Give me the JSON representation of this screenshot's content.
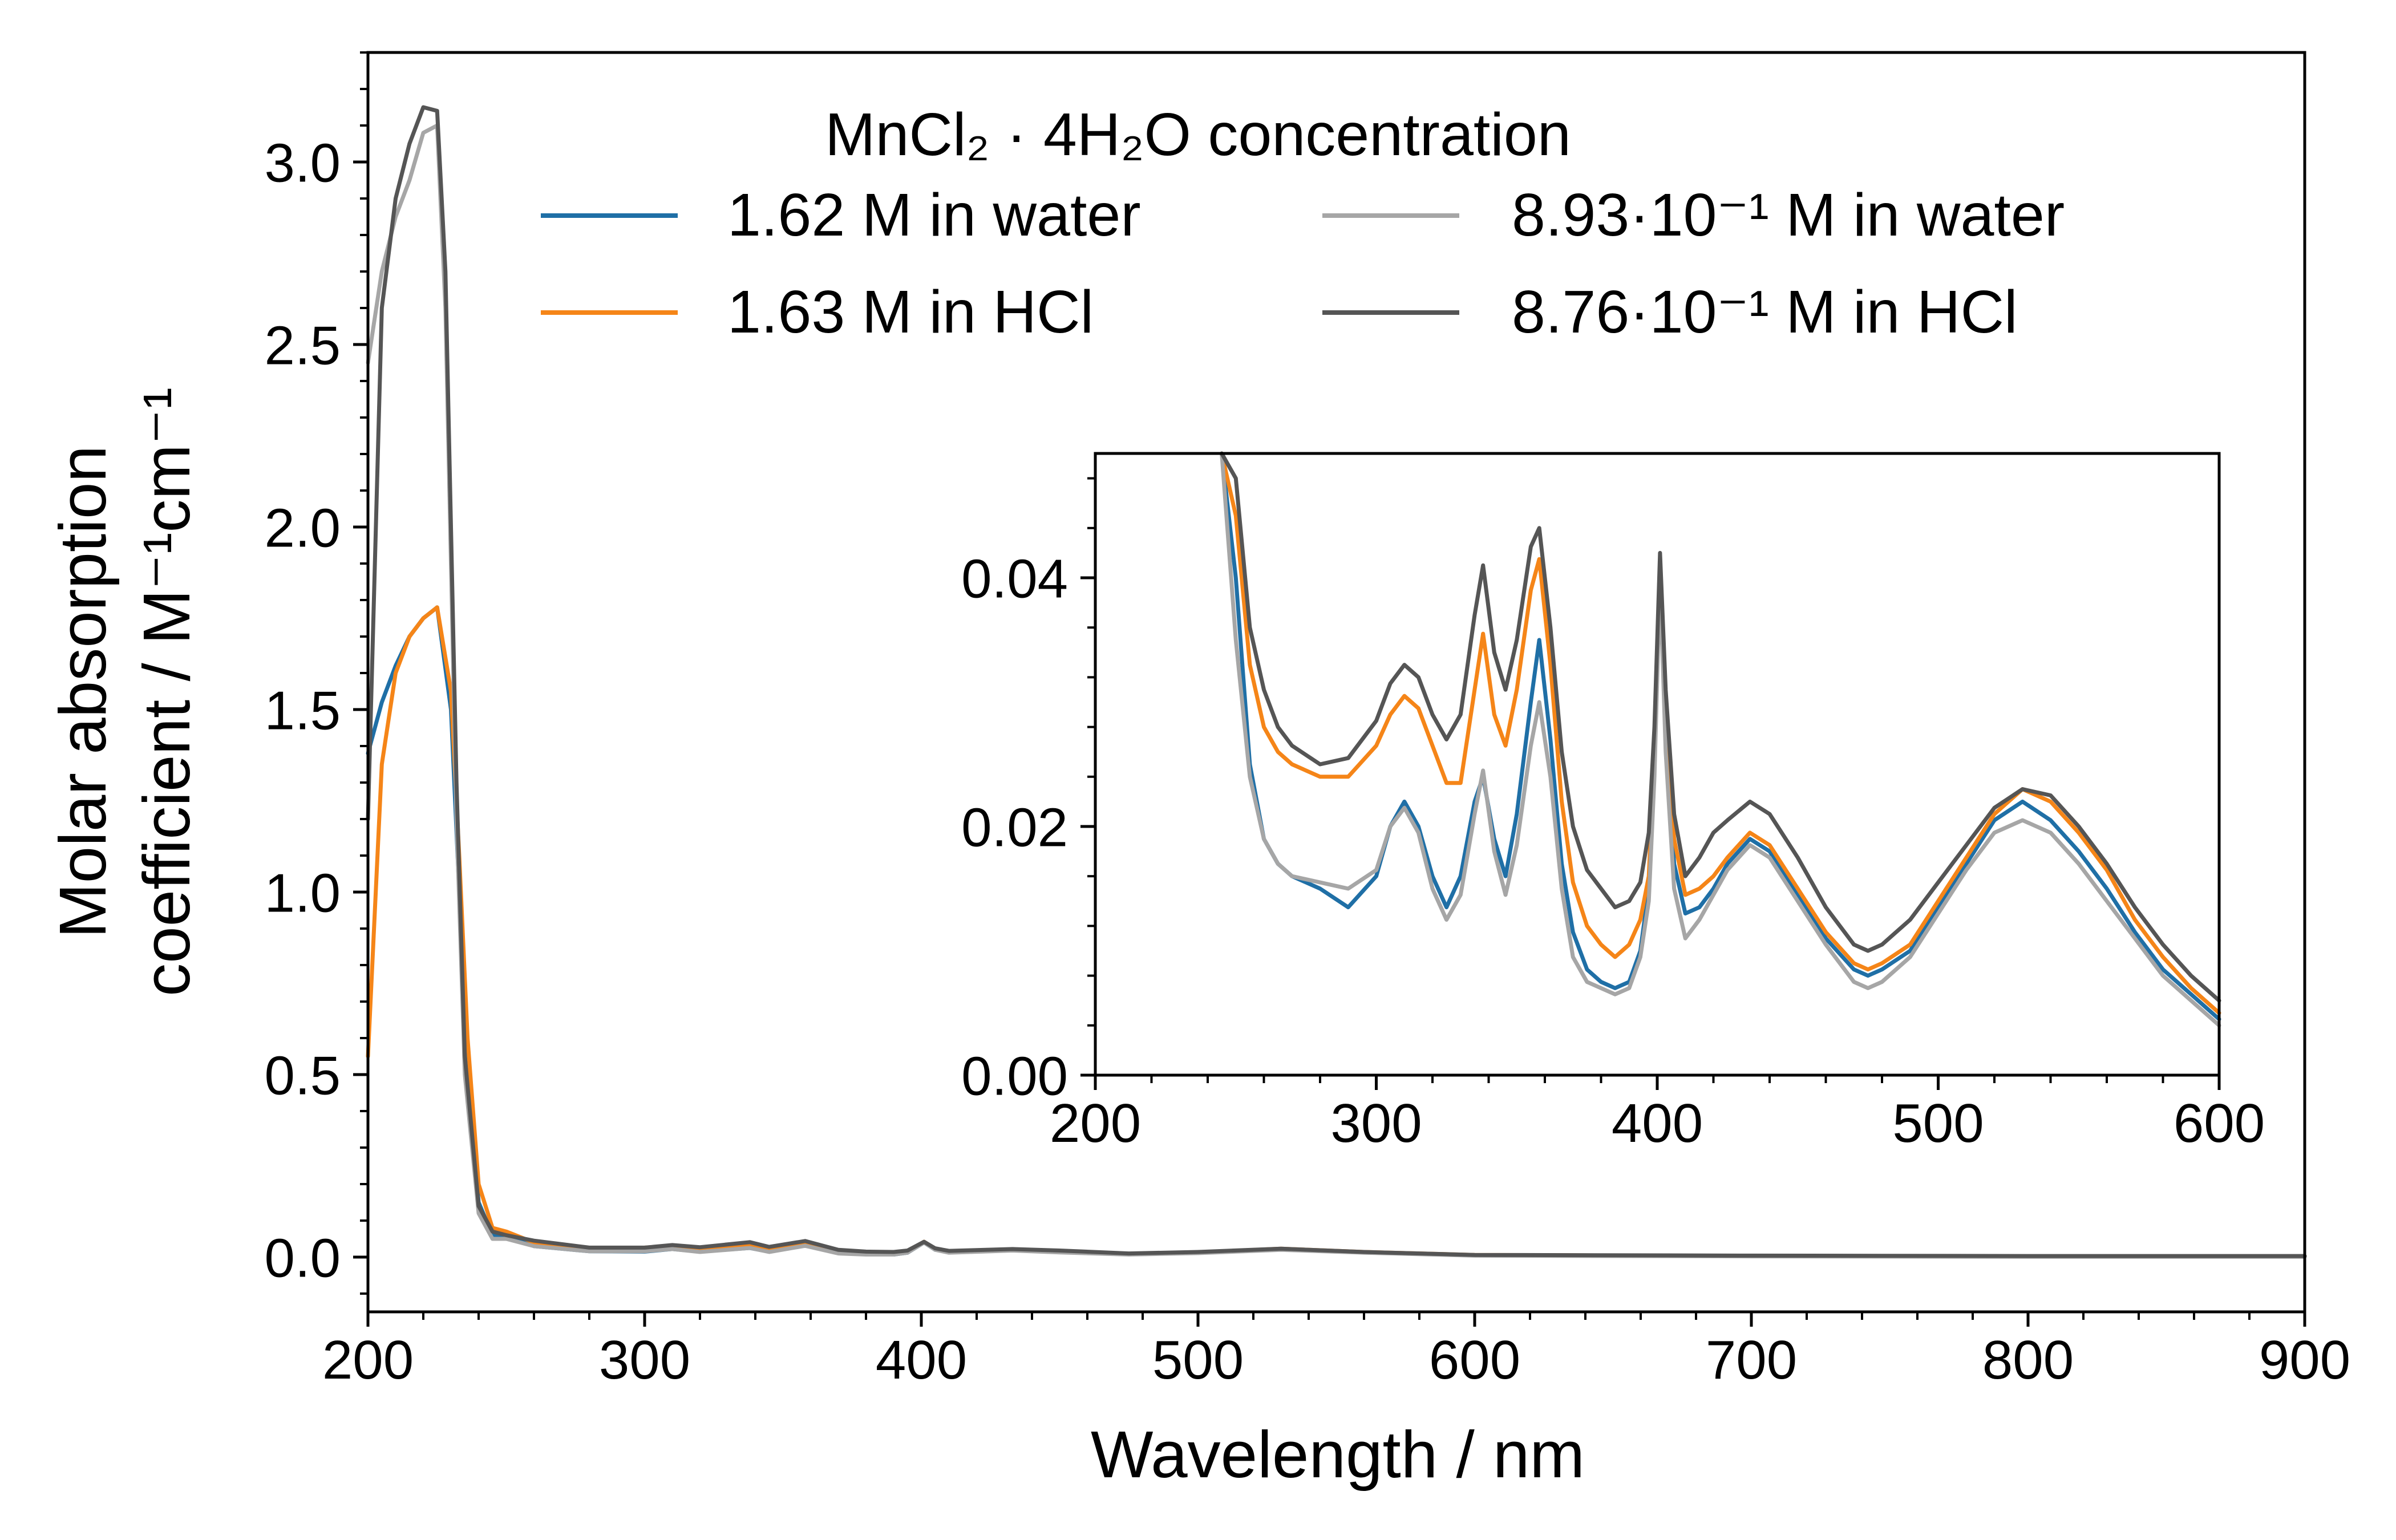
{
  "chart_data": [
    {
      "type": "line",
      "xlabel": "Wavelength / nm",
      "ylabel_line1": "Molar absorption",
      "ylabel_line2": "coefficient / M⁻¹cm⁻¹",
      "xlim": [
        200,
        900
      ],
      "ylim": [
        -0.15,
        3.3
      ],
      "xticks": [
        200,
        300,
        400,
        500,
        600,
        700,
        800,
        900
      ],
      "xtick_labels": [
        "200",
        "300",
        "400",
        "500",
        "600",
        "700",
        "800",
        "900"
      ],
      "yticks": [
        0.0,
        0.5,
        1.0,
        1.5,
        2.0,
        2.5,
        3.0
      ],
      "ytick_labels": [
        "0.0",
        "0.5",
        "1.0",
        "1.5",
        "2.0",
        "2.5",
        "3.0"
      ],
      "grid": false,
      "legend": {
        "placement": "top-center",
        "title": "MnCl₂ · 4H₂O concentration",
        "entries": [
          "1.62 M in water",
          "1.63 M in HCl",
          "8.93·10⁻¹ M in water",
          "8.76·10⁻¹ M in HCl"
        ]
      },
      "series": [
        {
          "name": "1.62 M in water",
          "color": "#1f6fa6",
          "x": [
            200,
            205,
            210,
            215,
            220,
            225,
            230,
            233,
            236,
            240,
            245,
            250,
            260,
            280,
            300,
            310,
            320,
            338,
            345,
            358,
            370,
            380,
            390,
            395,
            401,
            405,
            410,
            433,
            450,
            475,
            500,
            530,
            560,
            600,
            700,
            800,
            900
          ],
          "y": [
            1.38,
            1.52,
            1.62,
            1.7,
            1.75,
            1.78,
            1.5,
            1.0,
            0.5,
            0.15,
            0.06,
            0.06,
            0.03,
            0.016,
            0.015,
            0.022,
            0.015,
            0.025,
            0.015,
            0.035,
            0.012,
            0.008,
            0.007,
            0.012,
            0.04,
            0.02,
            0.015,
            0.019,
            0.014,
            0.008,
            0.012,
            0.022,
            0.013,
            0.005,
            0.003,
            0.002,
            0.002
          ]
        },
        {
          "name": "1.63 M in HCl",
          "color": "#f58518",
          "x": [
            200,
            205,
            210,
            215,
            220,
            225,
            230,
            233,
            236,
            240,
            245,
            250,
            260,
            280,
            300,
            310,
            320,
            338,
            345,
            358,
            370,
            380,
            390,
            395,
            401,
            405,
            410,
            433,
            450,
            475,
            500,
            530,
            560,
            600,
            700,
            800,
            900
          ],
          "y": [
            0.55,
            1.35,
            1.6,
            1.7,
            1.75,
            1.78,
            1.55,
            1.1,
            0.6,
            0.2,
            0.08,
            0.07,
            0.04,
            0.025,
            0.026,
            0.031,
            0.025,
            0.035,
            0.025,
            0.041,
            0.015,
            0.01,
            0.009,
            0.015,
            0.042,
            0.022,
            0.016,
            0.02,
            0.015,
            0.008,
            0.013,
            0.023,
            0.014,
            0.006,
            0.003,
            0.002,
            0.002
          ]
        },
        {
          "name": "8.93·10⁻¹ M in water",
          "color": "#a6a6a6",
          "x": [
            200,
            205,
            210,
            215,
            220,
            225,
            228,
            232,
            235,
            240,
            245,
            250,
            260,
            280,
            300,
            310,
            320,
            338,
            345,
            358,
            370,
            380,
            390,
            395,
            401,
            405,
            410,
            433,
            450,
            475,
            500,
            530,
            560,
            600,
            700,
            800,
            900
          ],
          "y": [
            2.45,
            2.7,
            2.85,
            2.95,
            3.08,
            3.1,
            2.6,
            1.2,
            0.5,
            0.12,
            0.05,
            0.05,
            0.03,
            0.016,
            0.016,
            0.022,
            0.014,
            0.025,
            0.014,
            0.031,
            0.01,
            0.007,
            0.007,
            0.012,
            0.04,
            0.02,
            0.012,
            0.018,
            0.013,
            0.007,
            0.011,
            0.02,
            0.012,
            0.004,
            0.002,
            0.001,
            0.001
          ]
        },
        {
          "name": "8.76·10⁻¹ M in HCl",
          "color": "#555555",
          "x": [
            200,
            205,
            210,
            215,
            220,
            225,
            228,
            232,
            235,
            240,
            245,
            250,
            260,
            280,
            300,
            310,
            320,
            338,
            345,
            358,
            370,
            380,
            390,
            395,
            401,
            405,
            410,
            433,
            450,
            475,
            500,
            530,
            560,
            600,
            700,
            800,
            900
          ],
          "y": [
            1.2,
            2.6,
            2.9,
            3.05,
            3.15,
            3.14,
            2.7,
            1.3,
            0.55,
            0.14,
            0.07,
            0.06,
            0.045,
            0.026,
            0.026,
            0.033,
            0.027,
            0.041,
            0.028,
            0.044,
            0.02,
            0.015,
            0.014,
            0.018,
            0.042,
            0.024,
            0.017,
            0.022,
            0.018,
            0.01,
            0.014,
            0.023,
            0.014,
            0.006,
            0.004,
            0.003,
            0.003
          ]
        }
      ]
    },
    {
      "type": "line",
      "inset": true,
      "xlim": [
        200,
        600
      ],
      "ylim": [
        0.0,
        0.05
      ],
      "xticks": [
        200,
        300,
        400,
        500,
        600
      ],
      "xtick_labels": [
        "200",
        "300",
        "400",
        "500",
        "600"
      ],
      "yticks": [
        0.0,
        0.02,
        0.04
      ],
      "ytick_labels": [
        "0.00",
        "0.02",
        "0.04"
      ],
      "grid": false,
      "series": [
        {
          "name": "1.62 M in water",
          "color": "#1f6fa6",
          "x": [
            245,
            250,
            255,
            260,
            265,
            270,
            280,
            290,
            300,
            305,
            310,
            315,
            320,
            325,
            330,
            335,
            338,
            342,
            346,
            350,
            355,
            358,
            362,
            366,
            370,
            375,
            380,
            385,
            390,
            394,
            397,
            399,
            401,
            403,
            406,
            410,
            415,
            420,
            425,
            433,
            440,
            450,
            460,
            470,
            475,
            480,
            490,
            500,
            510,
            520,
            530,
            540,
            550,
            560,
            570,
            580,
            590,
            600
          ],
          "y": [
            0.06,
            0.04,
            0.025,
            0.019,
            0.017,
            0.016,
            0.015,
            0.0135,
            0.016,
            0.02,
            0.022,
            0.02,
            0.016,
            0.0135,
            0.016,
            0.022,
            0.024,
            0.019,
            0.016,
            0.021,
            0.03,
            0.035,
            0.027,
            0.017,
            0.0115,
            0.0085,
            0.0075,
            0.007,
            0.0075,
            0.01,
            0.015,
            0.025,
            0.041,
            0.028,
            0.017,
            0.013,
            0.0135,
            0.015,
            0.017,
            0.019,
            0.018,
            0.0145,
            0.011,
            0.0085,
            0.008,
            0.0085,
            0.01,
            0.0135,
            0.017,
            0.0205,
            0.022,
            0.0205,
            0.018,
            0.015,
            0.0115,
            0.0085,
            0.0065,
            0.0045
          ]
        },
        {
          "name": "1.63 M in HCl",
          "color": "#f58518",
          "x": [
            245,
            250,
            255,
            260,
            265,
            270,
            280,
            290,
            300,
            305,
            310,
            315,
            320,
            325,
            330,
            335,
            338,
            342,
            346,
            350,
            355,
            358,
            362,
            366,
            370,
            375,
            380,
            385,
            390,
            394,
            397,
            399,
            401,
            403,
            406,
            410,
            415,
            420,
            425,
            433,
            440,
            450,
            460,
            470,
            475,
            480,
            490,
            500,
            510,
            520,
            530,
            540,
            550,
            560,
            570,
            580,
            590,
            600
          ],
          "y": [
            0.06,
            0.045,
            0.033,
            0.028,
            0.026,
            0.025,
            0.024,
            0.024,
            0.0265,
            0.029,
            0.0305,
            0.0295,
            0.0265,
            0.0235,
            0.0235,
            0.031,
            0.0355,
            0.029,
            0.0265,
            0.031,
            0.039,
            0.0415,
            0.033,
            0.022,
            0.0155,
            0.012,
            0.0105,
            0.0095,
            0.0105,
            0.0125,
            0.016,
            0.026,
            0.0415,
            0.029,
            0.019,
            0.0145,
            0.015,
            0.016,
            0.0175,
            0.0195,
            0.0185,
            0.015,
            0.0115,
            0.009,
            0.0085,
            0.009,
            0.0105,
            0.014,
            0.0175,
            0.021,
            0.023,
            0.022,
            0.0195,
            0.0165,
            0.0125,
            0.0095,
            0.007,
            0.005
          ]
        },
        {
          "name": "8.93·10⁻¹ M in water",
          "color": "#a6a6a6",
          "x": [
            245,
            250,
            255,
            260,
            265,
            270,
            280,
            290,
            300,
            305,
            310,
            315,
            320,
            325,
            330,
            335,
            338,
            342,
            346,
            350,
            355,
            358,
            362,
            366,
            370,
            375,
            380,
            385,
            390,
            394,
            397,
            399,
            401,
            403,
            406,
            410,
            415,
            420,
            425,
            433,
            440,
            450,
            460,
            470,
            475,
            480,
            490,
            500,
            510,
            520,
            530,
            540,
            550,
            560,
            570,
            580,
            590,
            600
          ],
          "y": [
            0.05,
            0.035,
            0.024,
            0.019,
            0.017,
            0.016,
            0.0155,
            0.015,
            0.0165,
            0.02,
            0.0215,
            0.0195,
            0.015,
            0.0125,
            0.0145,
            0.021,
            0.0245,
            0.018,
            0.0145,
            0.0185,
            0.0265,
            0.03,
            0.024,
            0.015,
            0.0095,
            0.0075,
            0.007,
            0.0065,
            0.007,
            0.0095,
            0.014,
            0.024,
            0.04,
            0.026,
            0.015,
            0.011,
            0.0125,
            0.0145,
            0.0165,
            0.0185,
            0.0175,
            0.014,
            0.0105,
            0.0075,
            0.007,
            0.0075,
            0.0095,
            0.013,
            0.0165,
            0.0195,
            0.0205,
            0.0195,
            0.017,
            0.014,
            0.011,
            0.008,
            0.006,
            0.004
          ]
        },
        {
          "name": "8.76·10⁻¹ M in HCl",
          "color": "#555555",
          "x": [
            245,
            250,
            255,
            260,
            265,
            270,
            280,
            290,
            300,
            305,
            310,
            315,
            320,
            325,
            330,
            335,
            338,
            342,
            346,
            350,
            355,
            358,
            362,
            366,
            370,
            375,
            380,
            385,
            390,
            394,
            397,
            399,
            401,
            403,
            406,
            410,
            415,
            420,
            425,
            433,
            440,
            450,
            460,
            470,
            475,
            480,
            490,
            500,
            510,
            520,
            530,
            540,
            550,
            560,
            570,
            580,
            590,
            600
          ],
          "y": [
            0.06,
            0.048,
            0.036,
            0.031,
            0.028,
            0.0265,
            0.025,
            0.0255,
            0.0285,
            0.0315,
            0.033,
            0.032,
            0.029,
            0.027,
            0.029,
            0.037,
            0.041,
            0.034,
            0.031,
            0.035,
            0.0425,
            0.044,
            0.036,
            0.026,
            0.02,
            0.0165,
            0.015,
            0.0135,
            0.014,
            0.0155,
            0.0195,
            0.028,
            0.042,
            0.031,
            0.021,
            0.016,
            0.0175,
            0.0195,
            0.0205,
            0.022,
            0.021,
            0.0175,
            0.0135,
            0.0105,
            0.01,
            0.0105,
            0.0125,
            0.0155,
            0.0185,
            0.0215,
            0.023,
            0.0225,
            0.02,
            0.017,
            0.0135,
            0.0105,
            0.008,
            0.006
          ]
        }
      ]
    }
  ]
}
